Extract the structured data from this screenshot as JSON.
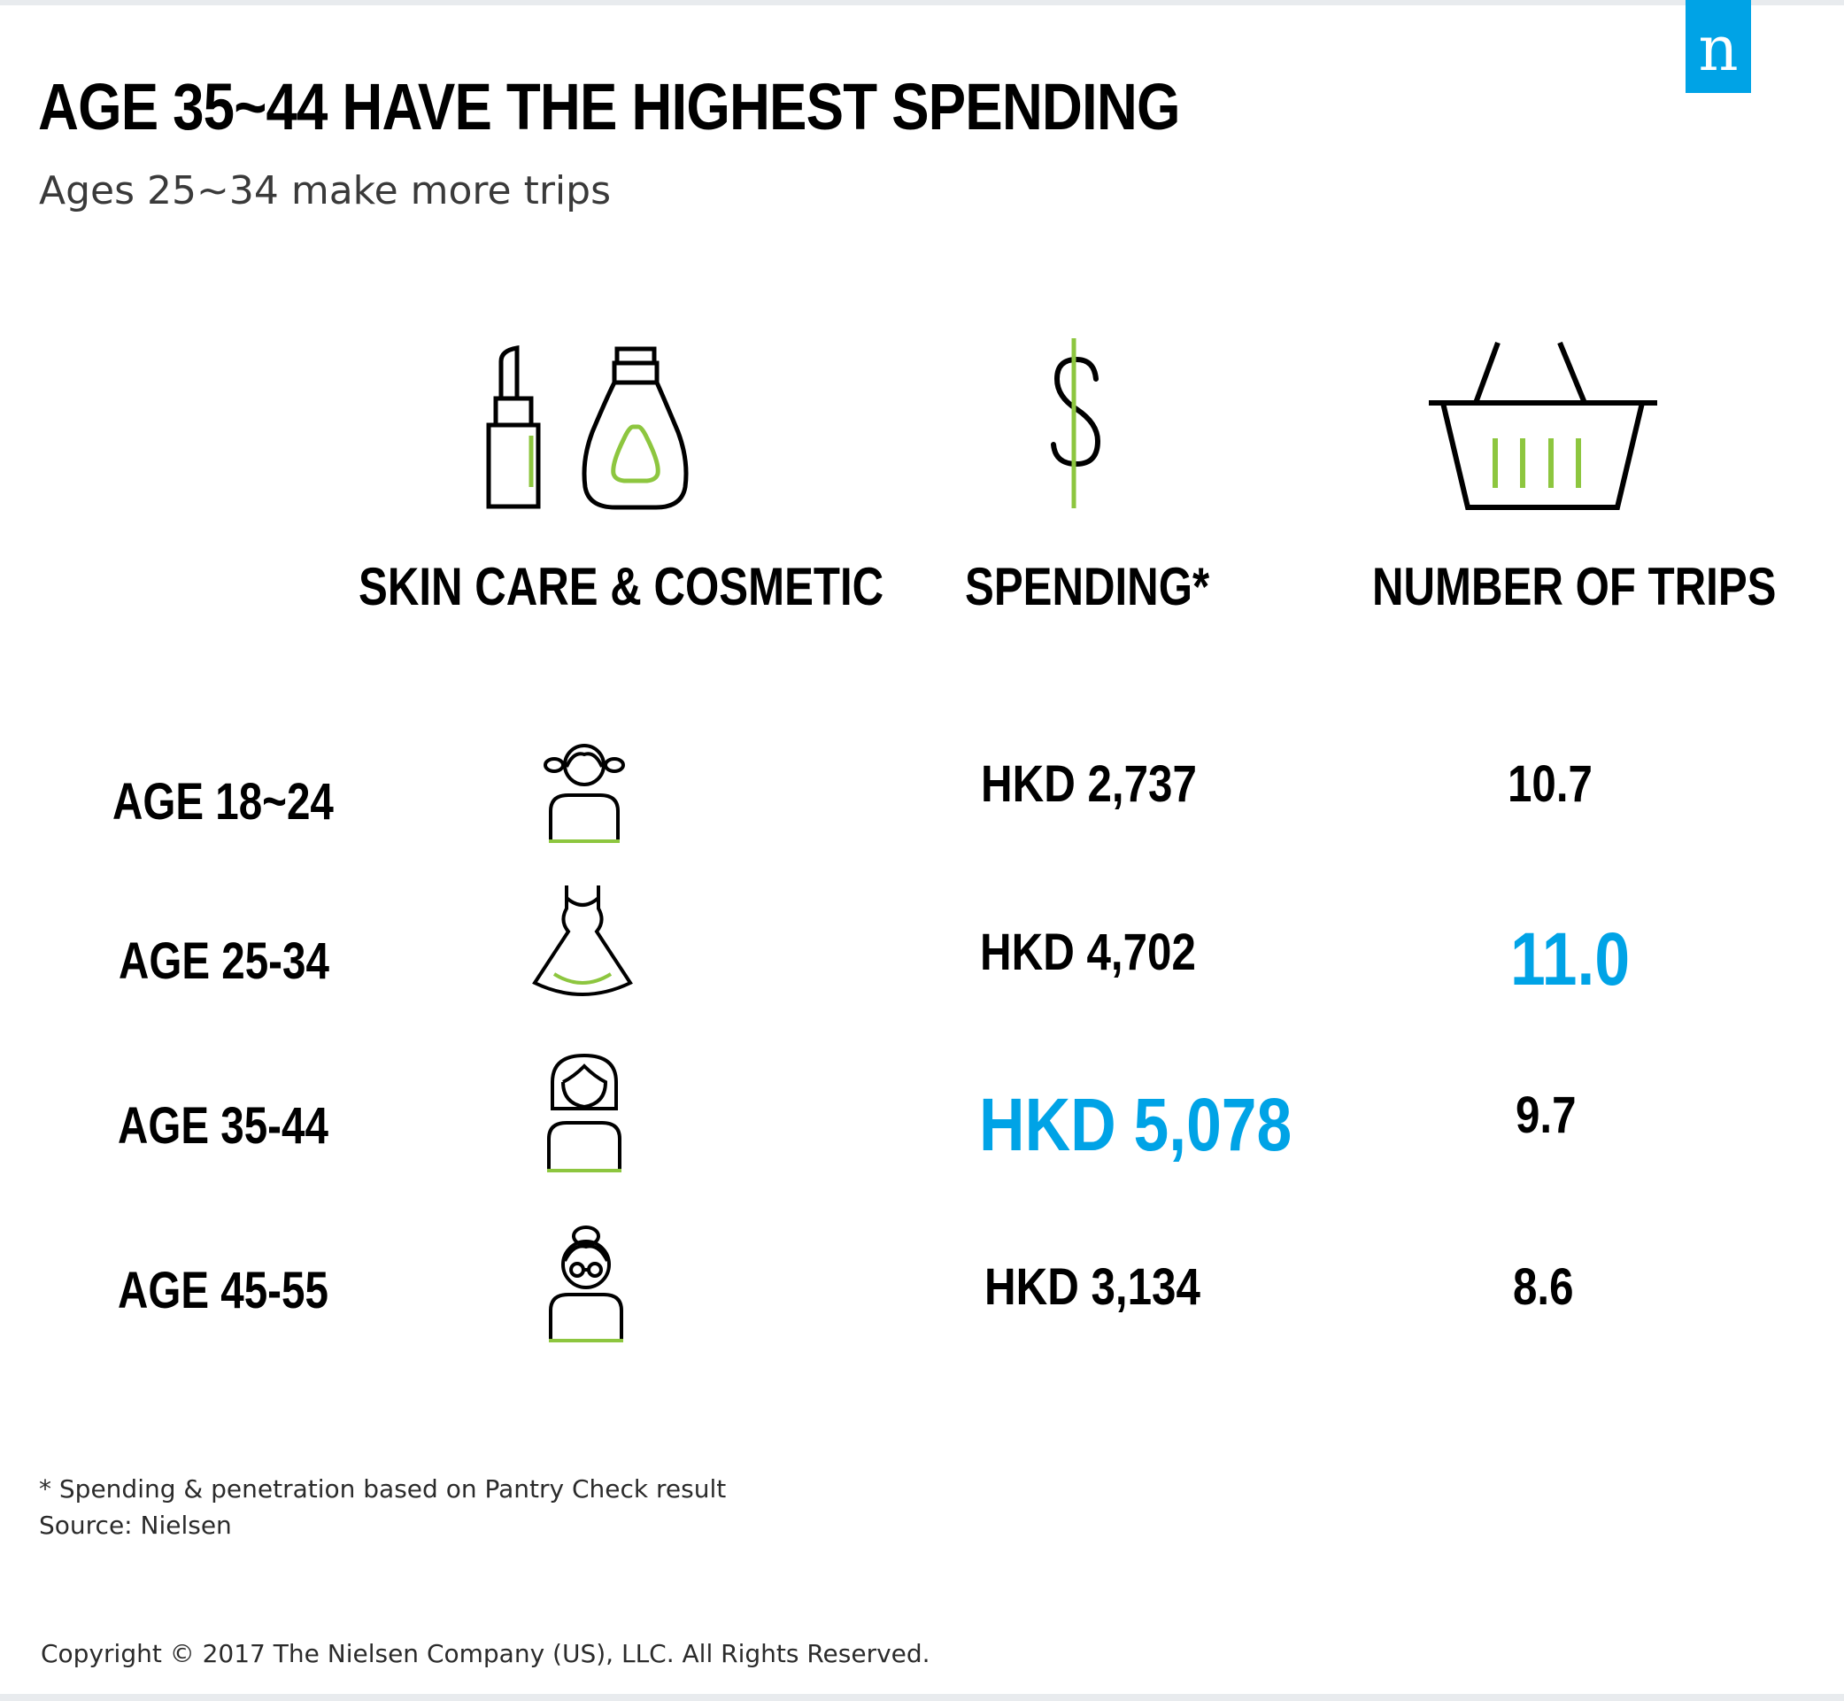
{
  "logo_letter": "n",
  "title": "AGE 35~44 HAVE THE HIGHEST SPENDING",
  "subtitle": "Ages 25~34 make more trips",
  "columns": {
    "category": "SKIN CARE & COSMETIC",
    "spending": "SPENDING*",
    "trips": "NUMBER OF TRIPS"
  },
  "rows": [
    {
      "age": "AGE 18~24",
      "icon": "girl-pigtails-icon",
      "spending": "HKD 2,737",
      "trips": "10.7"
    },
    {
      "age": "AGE 25-34",
      "icon": "dress-icon",
      "spending": "HKD 4,702",
      "trips": "11.0"
    },
    {
      "age": "AGE 35-44",
      "icon": "woman-bob-hair-icon",
      "spending": "HKD 5,078",
      "trips": "9.7"
    },
    {
      "age": "AGE 45-55",
      "icon": "older-woman-glasses-icon",
      "spending": "HKD 3,134",
      "trips": "8.6"
    }
  ],
  "highlight_color": "#00a3e6",
  "icon_accent_color": "#8dc63f",
  "footnotes": {
    "note": "* Spending & penetration based on Pantry Check result",
    "source": "Source: Nielsen"
  },
  "copyright": "Copyright © 2017 The Nielsen Company (US), LLC. All Rights Reserved."
}
